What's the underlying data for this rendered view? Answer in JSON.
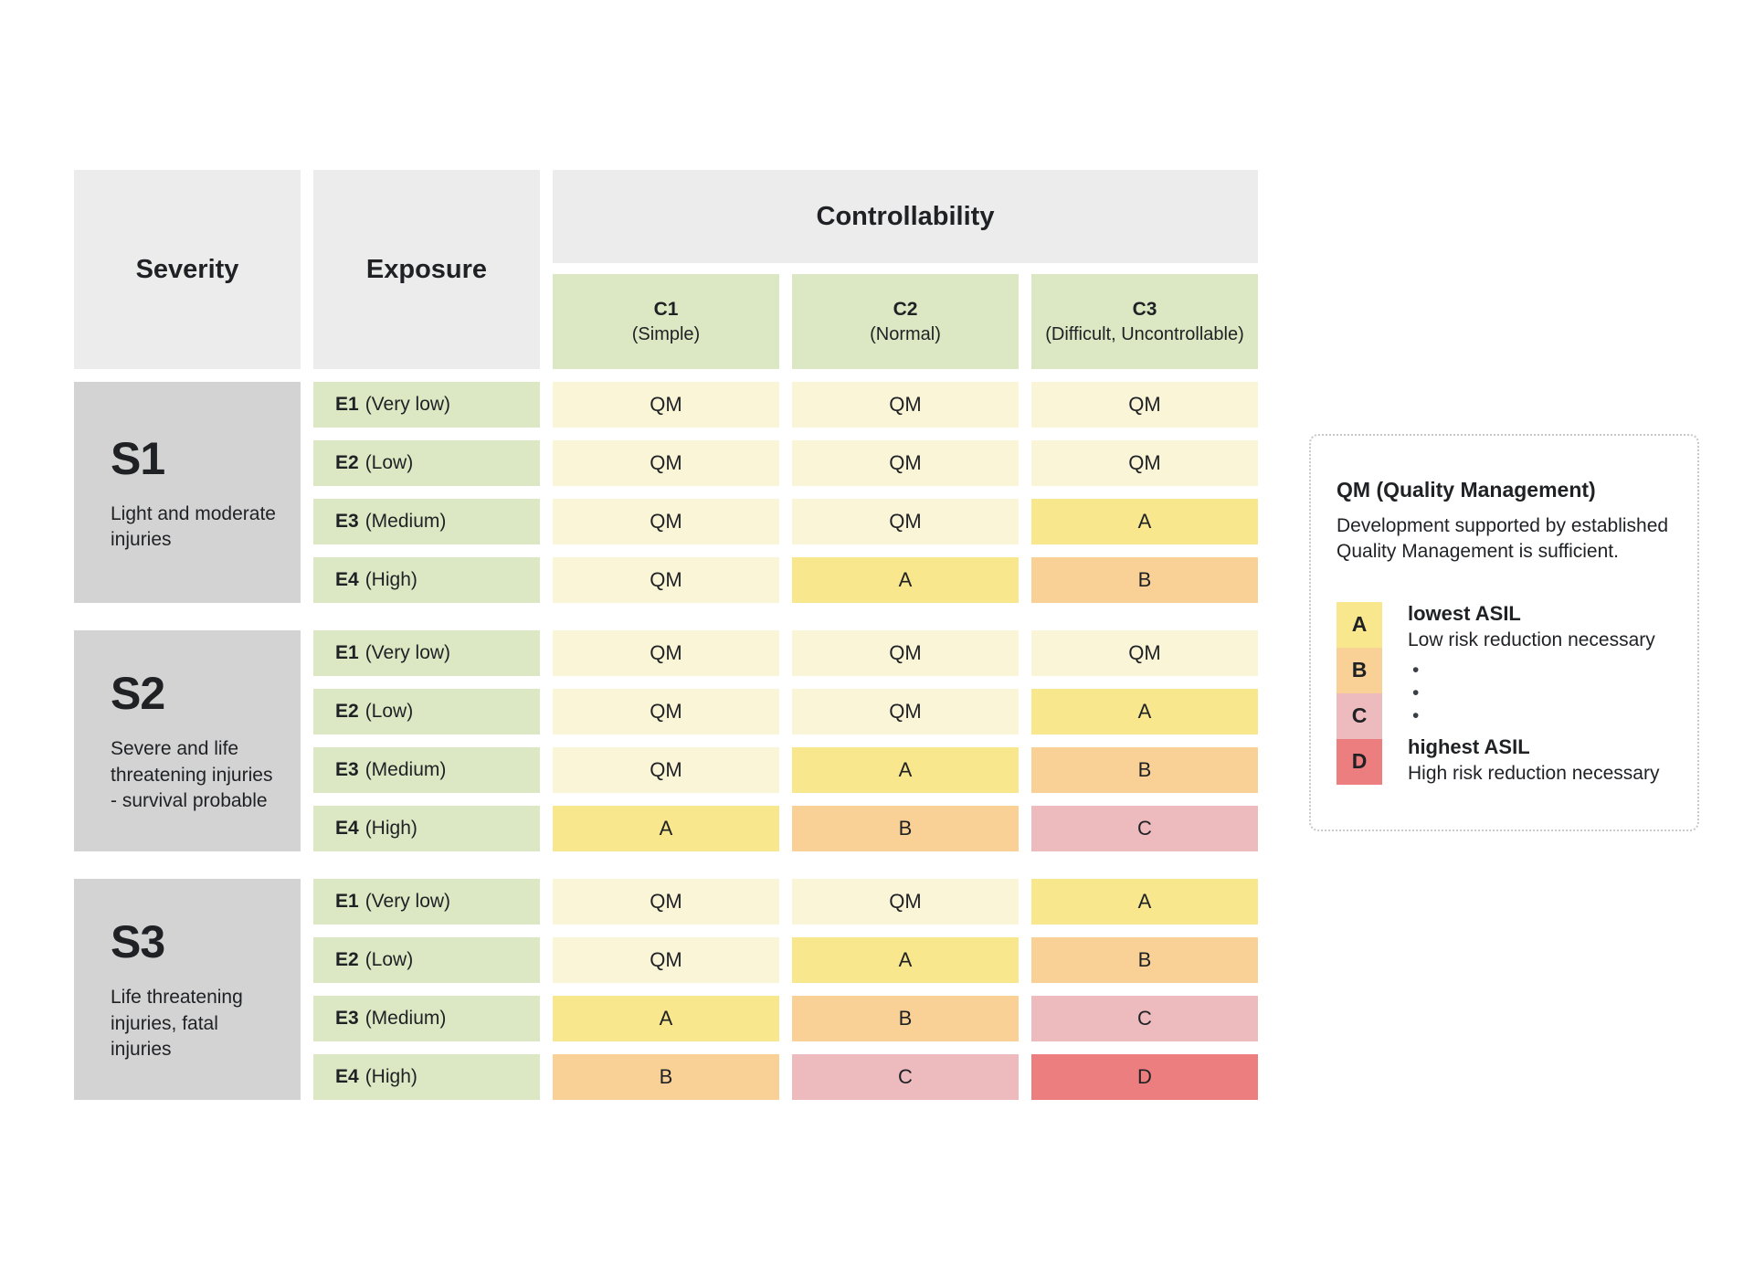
{
  "colors": {
    "canvas_bg": "#ffffff",
    "header_bg": "#ececec",
    "severity_block_bg": "#d3d3d3",
    "exposure_bg": "#dbe8c3",
    "column_header_bg": "#dbe8c3",
    "cell": {
      "QM": "#fbf5d7",
      "A": "#f9e78e",
      "B": "#f9d095",
      "C": "#edbabd",
      "D": "#ec7e7f"
    },
    "text": "#1f2124",
    "legend_border": "#c9c9c9"
  },
  "chart_data": {
    "type": "table",
    "row_group_label_1": "Severity",
    "row_group_label_2": "Exposure",
    "column_group_label": "Controllability",
    "columns": [
      {
        "code": "C1",
        "desc": "(Simple)"
      },
      {
        "code": "C2",
        "desc": "(Normal)"
      },
      {
        "code": "C3",
        "desc": "(Difficult, Uncontrollable)"
      }
    ],
    "severity_blocks": [
      {
        "code": "S1",
        "desc": "Light and moderate injuries",
        "rows": [
          {
            "exposure_code": "E1",
            "exposure_desc": "(Very low)",
            "values": [
              "QM",
              "QM",
              "QM"
            ]
          },
          {
            "exposure_code": "E2",
            "exposure_desc": "(Low)",
            "values": [
              "QM",
              "QM",
              "QM"
            ]
          },
          {
            "exposure_code": "E3",
            "exposure_desc": "(Medium)",
            "values": [
              "QM",
              "QM",
              "A"
            ]
          },
          {
            "exposure_code": "E4",
            "exposure_desc": "(High)",
            "values": [
              "QM",
              "A",
              "B"
            ]
          }
        ]
      },
      {
        "code": "S2",
        "desc": "Severe and life threatening injuries - survival probable",
        "rows": [
          {
            "exposure_code": "E1",
            "exposure_desc": "(Very low)",
            "values": [
              "QM",
              "QM",
              "QM"
            ]
          },
          {
            "exposure_code": "E2",
            "exposure_desc": "(Low)",
            "values": [
              "QM",
              "QM",
              "A"
            ]
          },
          {
            "exposure_code": "E3",
            "exposure_desc": "(Medium)",
            "values": [
              "QM",
              "A",
              "B"
            ]
          },
          {
            "exposure_code": "E4",
            "exposure_desc": "(High)",
            "values": [
              "A",
              "B",
              "C"
            ]
          }
        ]
      },
      {
        "code": "S3",
        "desc": "Life threatening injuries, fatal injuries",
        "rows": [
          {
            "exposure_code": "E1",
            "exposure_desc": "(Very low)",
            "values": [
              "QM",
              "QM",
              "A"
            ]
          },
          {
            "exposure_code": "E2",
            "exposure_desc": "(Low)",
            "values": [
              "QM",
              "A",
              "B"
            ]
          },
          {
            "exposure_code": "E3",
            "exposure_desc": "(Medium)",
            "values": [
              "A",
              "B",
              "C"
            ]
          },
          {
            "exposure_code": "E4",
            "exposure_desc": "(High)",
            "values": [
              "B",
              "C",
              "D"
            ]
          }
        ]
      }
    ]
  },
  "legend": {
    "title": "QM (Quality Management)",
    "description": "Development supported by established Quality Management is sufficient.",
    "swatches": [
      {
        "label": "A"
      },
      {
        "label": "B"
      },
      {
        "label": "C"
      },
      {
        "label": "D"
      }
    ],
    "lowest_title": "lowest ASIL",
    "lowest_desc": "Low risk reduction necessary",
    "highest_title": "highest ASIL",
    "highest_desc": "High risk reduction necessary",
    "dots": [
      "•",
      "•",
      "•"
    ]
  }
}
